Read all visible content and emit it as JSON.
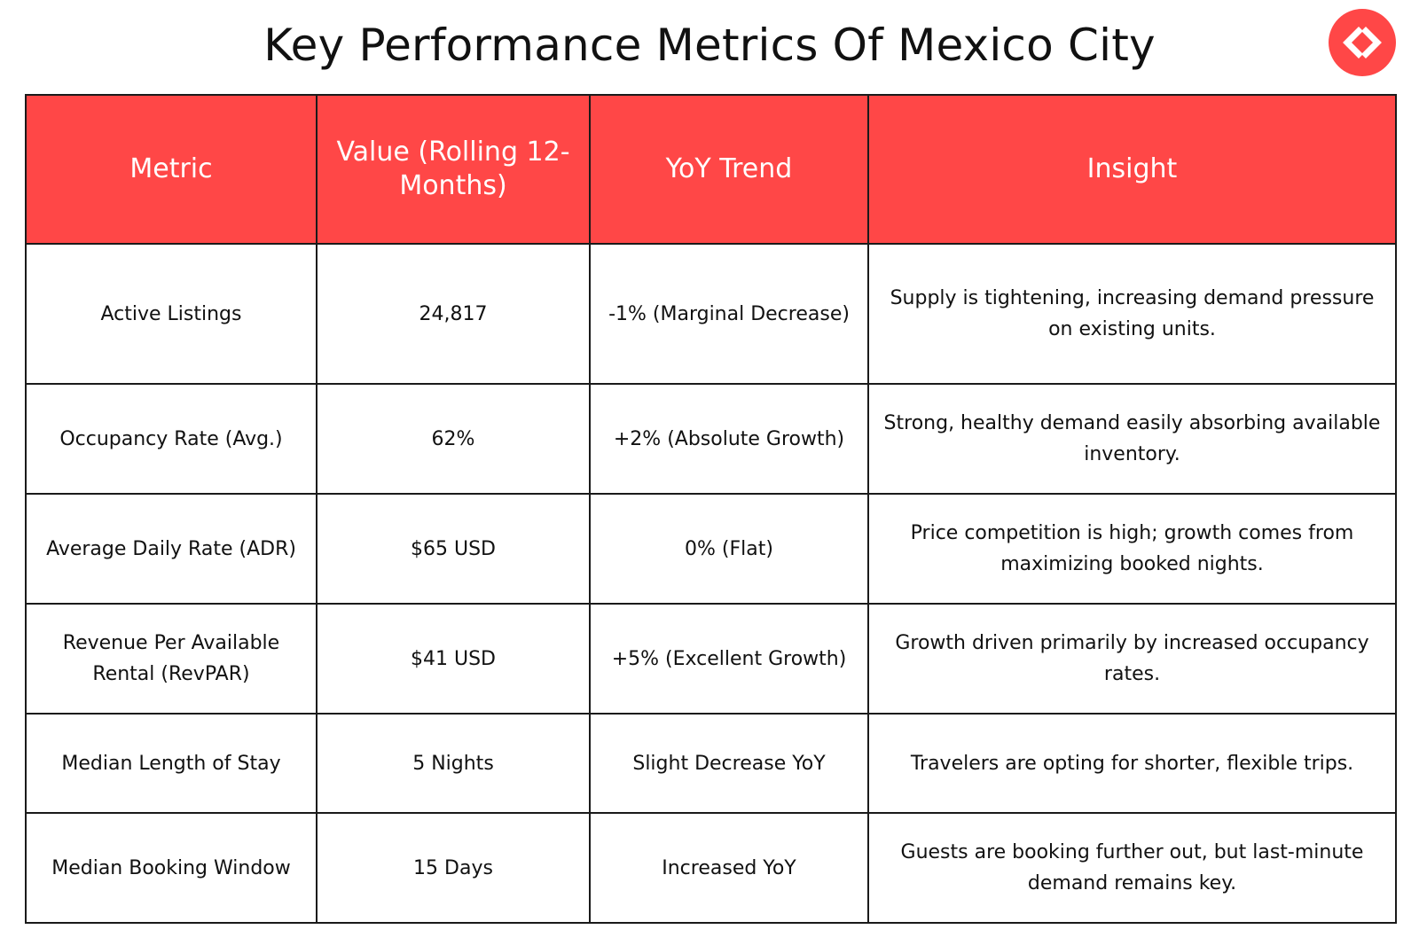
{
  "title": "Key Performance Metrics Of Mexico City",
  "logo_icon": "code-brackets-icon",
  "colors": {
    "accent": "#ff4747",
    "header_text": "#ffffff",
    "border": "#1a1a1a"
  },
  "table": {
    "headers": [
      "Metric",
      "Value (Rolling 12-Months)",
      "YoY Trend",
      "Insight"
    ],
    "rows": [
      {
        "metric": "Active Listings",
        "value": "24,817",
        "trend": "-1% (Marginal Decrease)",
        "insight": "Supply is tightening, increasing demand pressure on existing units."
      },
      {
        "metric": "Occupancy Rate (Avg.)",
        "value": "62%",
        "trend": "+2% (Absolute Growth)",
        "insight": "Strong, healthy demand easily absorbing available inventory."
      },
      {
        "metric": "Average Daily Rate (ADR)",
        "value": "$65 USD",
        "trend": "0% (Flat)",
        "insight": "Price competition is high; growth comes from maximizing booked nights."
      },
      {
        "metric": "Revenue Per Available Rental (RevPAR)",
        "value": "$41 USD",
        "trend": "+5% (Excellent Growth)",
        "insight": "Growth driven primarily by increased occupancy rates."
      },
      {
        "metric": "Median Length of Stay",
        "value": "5 Nights",
        "trend": "Slight Decrease YoY",
        "insight": "Travelers are opting for shorter, flexible trips."
      },
      {
        "metric": "Median Booking Window",
        "value": "15 Days",
        "trend": "Increased YoY",
        "insight": "Guests are booking further out, but last-minute demand remains key."
      }
    ]
  }
}
